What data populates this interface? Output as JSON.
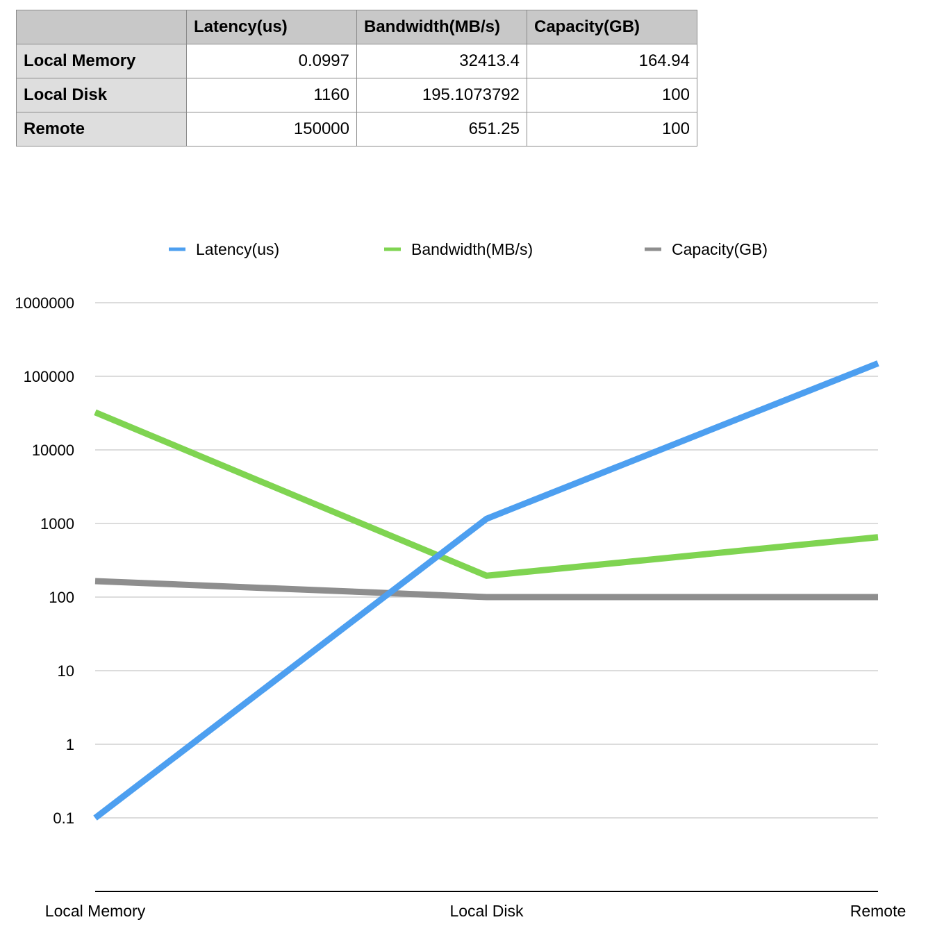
{
  "table": {
    "header": [
      "",
      "Latency(us)",
      "Bandwidth(MB/s)",
      "Capacity(GB)"
    ],
    "rows": [
      {
        "label": "Local Memory",
        "cells": [
          "0.0997",
          "32413.4",
          "164.94"
        ]
      },
      {
        "label": "Local Disk",
        "cells": [
          "1160",
          "195.1073792",
          "100"
        ]
      },
      {
        "label": "Remote",
        "cells": [
          "150000",
          "651.25",
          "100"
        ]
      }
    ]
  },
  "chart_data": {
    "type": "line",
    "categories": [
      "Local Memory",
      "Local Disk",
      "Remote"
    ],
    "y_scale": "log",
    "ylim": [
      0.1,
      1000000
    ],
    "yticks": [
      0.1,
      1,
      10,
      100,
      1000,
      10000,
      100000,
      1000000
    ],
    "ytick_labels": [
      "0.1",
      "1",
      "10",
      "100",
      "1000",
      "10000",
      "100000",
      "1000000"
    ],
    "grid": true,
    "legend_position": "top",
    "series": [
      {
        "name": "Latency(us)",
        "color": "#4d9ff0",
        "values": [
          0.0997,
          1160,
          150000
        ]
      },
      {
        "name": "Bandwidth(MB/s)",
        "color": "#7fd451",
        "values": [
          32413.4,
          195.1073792,
          651.25
        ]
      },
      {
        "name": "Capacity(GB)",
        "color": "#8e8e8e",
        "values": [
          164.94,
          100,
          100
        ]
      }
    ],
    "title": "",
    "xlabel": "",
    "ylabel": ""
  }
}
